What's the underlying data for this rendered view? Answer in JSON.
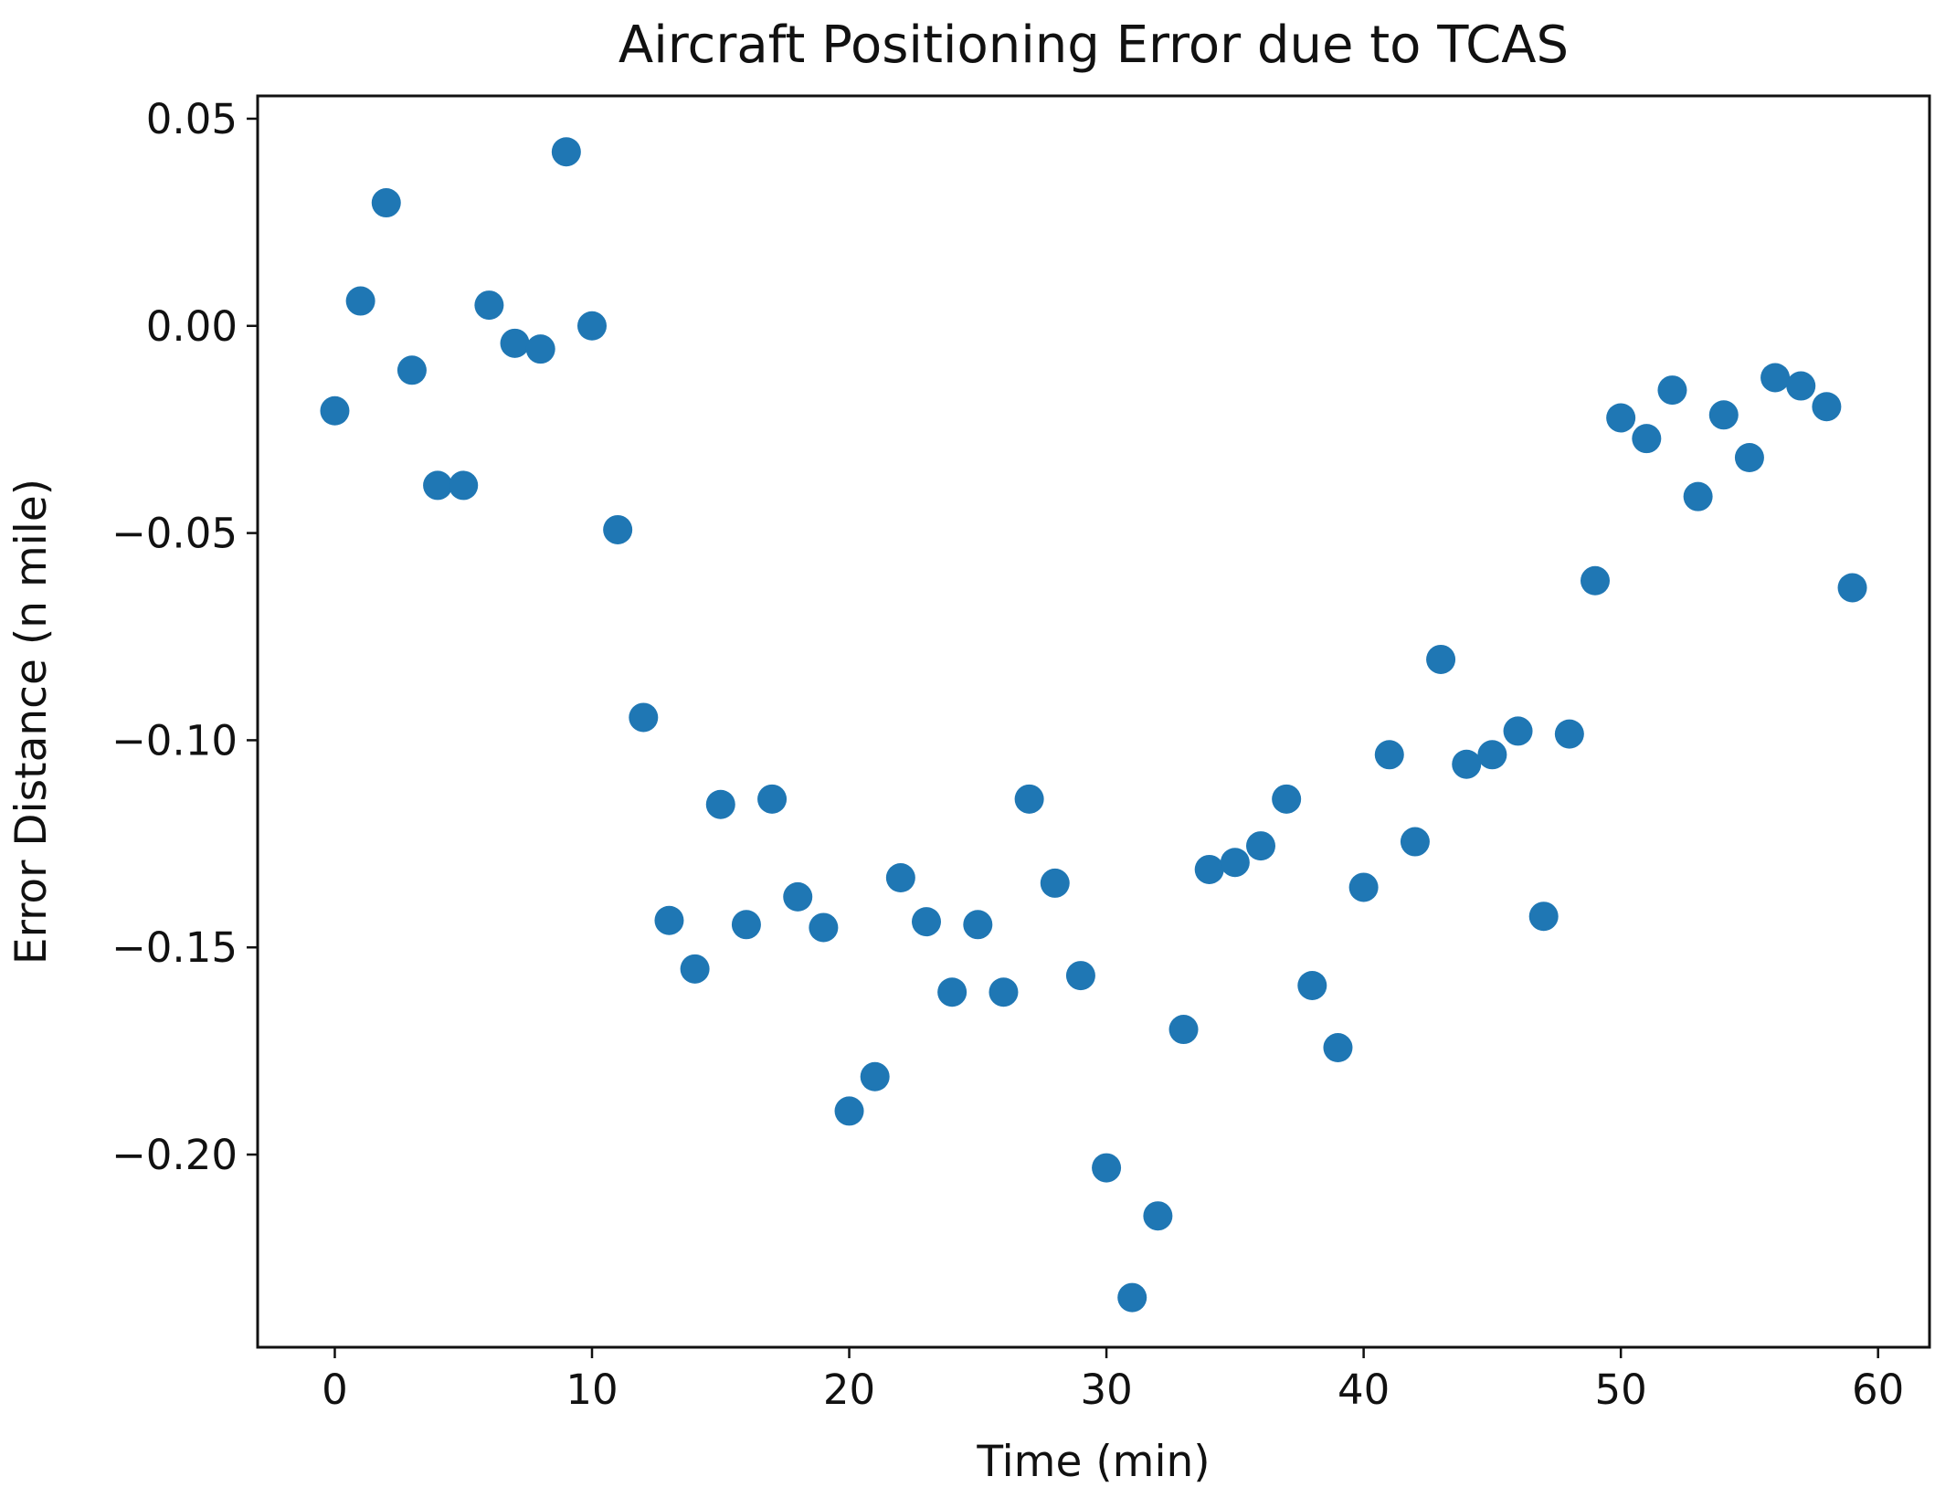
{
  "chart_data": {
    "type": "scatter",
    "title": "Aircraft Positioning Error due to TCAS",
    "xlabel": "Time (min)",
    "ylabel": "Error Distance (n mile)",
    "xlim": [
      -3,
      62
    ],
    "ylim": [
      -0.2465,
      0.0555
    ],
    "xticks": [
      0,
      10,
      20,
      30,
      40,
      50,
      60
    ],
    "xtick_labels": [
      "0",
      "10",
      "20",
      "30",
      "40",
      "50",
      "60"
    ],
    "yticks": [
      0.05,
      0.0,
      -0.05,
      -0.1,
      -0.15,
      -0.2
    ],
    "ytick_labels": [
      "0.05",
      "0.00",
      "−0.05",
      "−0.10",
      "−0.15",
      "−0.20"
    ],
    "grid": false,
    "color": "#1f77b4",
    "series": [
      {
        "name": "Error Distance",
        "x": [
          0,
          1,
          2,
          3,
          4,
          5,
          6,
          7,
          8,
          9,
          10,
          11,
          12,
          13,
          14,
          15,
          16,
          17,
          18,
          19,
          20,
          21,
          22,
          23,
          24,
          25,
          26,
          27,
          28,
          29,
          30,
          31,
          32,
          33,
          34,
          35,
          36,
          37,
          38,
          39,
          40,
          41,
          42,
          43,
          44,
          45,
          46,
          47,
          48,
          49,
          50,
          51,
          52,
          53,
          54,
          55,
          56,
          57,
          58,
          59
        ],
        "y": [
          -0.0205,
          0.006,
          0.0297,
          -0.0107,
          -0.0385,
          -0.0385,
          0.005,
          -0.0042,
          -0.0056,
          0.042,
          0.0,
          -0.0492,
          -0.0945,
          -0.1435,
          -0.1552,
          -0.1155,
          -0.1445,
          -0.1142,
          -0.1378,
          -0.1452,
          -0.1895,
          -0.1812,
          -0.1332,
          -0.1438,
          -0.1608,
          -0.1445,
          -0.1608,
          -0.1142,
          -0.1345,
          -0.1568,
          -0.2032,
          -0.2345,
          -0.2148,
          -0.1698,
          -0.1312,
          -0.1295,
          -0.1255,
          -0.1142,
          -0.1592,
          -0.1742,
          -0.1355,
          -0.1035,
          -0.1245,
          -0.0805,
          -0.1058,
          -0.1035,
          -0.0978,
          -0.1425,
          -0.0985,
          -0.0615,
          -0.0222,
          -0.0272,
          -0.0155,
          -0.0412,
          -0.0215,
          -0.0318,
          -0.0125,
          -0.0145,
          -0.0195,
          -0.0632
        ]
      }
    ]
  }
}
